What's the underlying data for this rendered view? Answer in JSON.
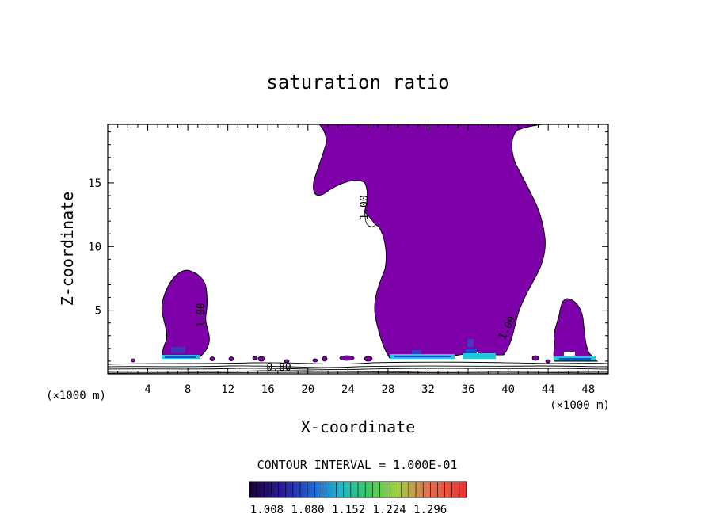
{
  "chart_data": {
    "type": "contour",
    "title": "saturation ratio",
    "xlabel": "X-coordinate",
    "ylabel": "Z-coordinate",
    "x_unit": "(×1000 m)",
    "z_unit": "(×1000 m)",
    "xlim": [
      0,
      50
    ],
    "ylim": [
      0,
      19.6
    ],
    "x_ticks": [
      4,
      8,
      12,
      16,
      20,
      24,
      28,
      32,
      36,
      40,
      44,
      48
    ],
    "y_ticks": [
      5,
      10,
      15
    ],
    "contour_labels": [
      "1.00",
      "1.00",
      "1.00",
      "0.80"
    ],
    "contour_interval": "CONTOUR INTERVAL = 1.000E-01",
    "colorbar_ticks": [
      "1.008",
      "1.080",
      "1.152",
      "1.224",
      "1.296"
    ],
    "fill_color": "#7e00a8",
    "regions": [
      {
        "name": "cloud-left",
        "x_range": [
          5.2,
          10.4
        ],
        "z_range": [
          1.2,
          8.3
        ]
      },
      {
        "name": "cloud-main",
        "x_range": [
          20.4,
          44.2
        ],
        "z_range": [
          1.2,
          19.6
        ]
      },
      {
        "name": "cloud-right",
        "x_range": [
          45.4,
          49.2
        ],
        "z_range": [
          1.2,
          6.1
        ]
      }
    ]
  }
}
